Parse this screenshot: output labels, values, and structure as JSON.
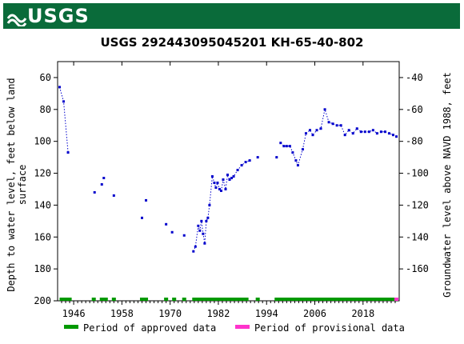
{
  "header": {
    "agency": "USGS"
  },
  "colors": {
    "banner": "#0a6b3a",
    "approved": "#009900",
    "provisional": "#ff33cc",
    "data": "#0000cc"
  },
  "chart_data": {
    "type": "scatter",
    "title": "USGS 292443095045201 KH-65-40-802",
    "ylabel_left": [
      "Depth to water level, feet below land",
      "surface"
    ],
    "ylabel_right": "Groundwater level above NAVD 1988, feet",
    "xlim": [
      1942,
      2027
    ],
    "ylim_left": [
      200,
      50
    ],
    "ylim_right": [
      -180,
      -30
    ],
    "x_ticks": [
      1946,
      1958,
      1970,
      1982,
      1994,
      2006,
      2018
    ],
    "y_ticks_left": [
      60,
      80,
      100,
      120,
      140,
      160,
      180,
      200
    ],
    "y_ticks_right": [
      -40,
      -60,
      -80,
      -100,
      -120,
      -140,
      -160
    ],
    "series": [
      {
        "name": "depth",
        "connected": true,
        "points": [
          [
            1942.5,
            66
          ],
          [
            1943.5,
            75
          ],
          [
            1944.6,
            107
          ]
        ]
      },
      {
        "name": "depth",
        "connected": false,
        "points": [
          [
            1951.2,
            132
          ],
          [
            1953.0,
            127
          ],
          [
            1953.5,
            123
          ],
          [
            1956.0,
            134
          ],
          [
            1963.0,
            148
          ],
          [
            1964.0,
            137
          ],
          [
            1969.0,
            152
          ],
          [
            1970.5,
            157
          ],
          [
            1973.5,
            159
          ]
        ]
      },
      {
        "name": "depth",
        "connected": true,
        "points": [
          [
            1975.8,
            169
          ],
          [
            1976.3,
            166
          ],
          [
            1977.0,
            153
          ],
          [
            1977.4,
            156
          ],
          [
            1977.8,
            150
          ],
          [
            1978.2,
            158
          ],
          [
            1978.6,
            164
          ],
          [
            1979.0,
            150
          ],
          [
            1979.4,
            148
          ],
          [
            1979.8,
            140
          ],
          [
            1980.5,
            122
          ],
          [
            1981.0,
            126
          ],
          [
            1981.4,
            129
          ],
          [
            1981.8,
            126
          ],
          [
            1982.3,
            130
          ],
          [
            1982.7,
            131
          ],
          [
            1983.2,
            124
          ],
          [
            1983.8,
            130
          ],
          [
            1984.3,
            121
          ],
          [
            1984.8,
            124
          ],
          [
            1985.3,
            123
          ],
          [
            1985.8,
            122
          ],
          [
            1986.8,
            118
          ],
          [
            1987.8,
            115
          ],
          [
            1988.8,
            113
          ],
          [
            1989.8,
            112
          ]
        ]
      },
      {
        "name": "depth",
        "connected": false,
        "points": [
          [
            1991.8,
            110
          ],
          [
            1996.5,
            110
          ]
        ]
      },
      {
        "name": "depth",
        "connected": true,
        "points": [
          [
            1997.5,
            101
          ],
          [
            1998.3,
            103
          ],
          [
            1999.0,
            103
          ],
          [
            1999.8,
            103
          ],
          [
            2000.5,
            107
          ],
          [
            2001.3,
            112
          ],
          [
            2001.8,
            115
          ],
          [
            2003.0,
            105
          ],
          [
            2003.8,
            95
          ],
          [
            2004.8,
            93
          ],
          [
            2005.5,
            96
          ],
          [
            2006.5,
            93
          ],
          [
            2007.5,
            92
          ],
          [
            2008.5,
            80
          ],
          [
            2009.5,
            88
          ],
          [
            2010.5,
            89
          ],
          [
            2011.5,
            90
          ],
          [
            2012.5,
            90
          ],
          [
            2013.5,
            96
          ],
          [
            2014.5,
            93
          ],
          [
            2015.5,
            95
          ],
          [
            2016.5,
            92
          ],
          [
            2017.5,
            94
          ],
          [
            2018.5,
            94
          ],
          [
            2019.5,
            94
          ],
          [
            2020.5,
            93
          ],
          [
            2021.5,
            95
          ],
          [
            2022.5,
            94
          ],
          [
            2023.5,
            94
          ],
          [
            2024.5,
            95
          ],
          [
            2025.5,
            96
          ],
          [
            2026.3,
            97
          ]
        ]
      }
    ],
    "period_segments": [
      [
        1942.5,
        1945.5
      ],
      [
        1950.5,
        1951.5
      ],
      [
        1952.5,
        1954.5
      ],
      [
        1955.5,
        1956.5
      ],
      [
        1962.5,
        1964.5
      ],
      [
        1968.5,
        1969.5
      ],
      [
        1970.5,
        1971.5
      ],
      [
        1973.0,
        1974.0
      ],
      [
        1975.5,
        1989.5
      ],
      [
        1991.3,
        1992.3
      ],
      [
        1996.0,
        2025.8
      ]
    ],
    "provisional_segments": [
      [
        2025.8,
        2026.8
      ]
    ],
    "legend": [
      "Period of approved data",
      "Period of provisional data"
    ]
  }
}
